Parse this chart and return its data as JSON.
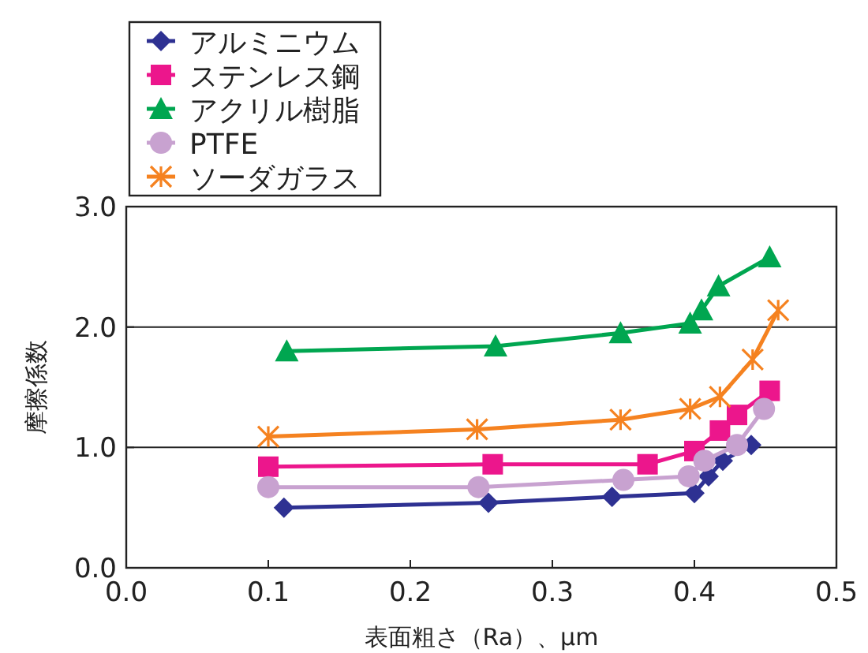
{
  "chart_data": {
    "type": "line",
    "xlabel": "表面粗さ（Ra）、μm",
    "ylabel": "摩擦係数",
    "xlim": [
      0,
      0.5
    ],
    "ylim": [
      0,
      3
    ],
    "xticks": [
      {
        "value": 0,
        "label": "0.0"
      },
      {
        "value": 0.1,
        "label": "0.1"
      },
      {
        "value": 0.2,
        "label": "0.2"
      },
      {
        "value": 0.3,
        "label": "0.3"
      },
      {
        "value": 0.4,
        "label": "0.4"
      },
      {
        "value": 0.5,
        "label": "0.5"
      }
    ],
    "yticks": [
      {
        "value": 0,
        "label": "0.0"
      },
      {
        "value": 1,
        "label": "1.0"
      },
      {
        "value": 2,
        "label": "2.0"
      },
      {
        "value": 3,
        "label": "3.0"
      }
    ],
    "grid": "y",
    "legend": "top left",
    "series": [
      {
        "name": "アルミニウム",
        "color": "#2e3192",
        "marker": "diamond",
        "x": [
          0.111,
          0.255,
          0.342,
          0.4,
          0.41,
          0.42,
          0.44
        ],
        "values": [
          0.5,
          0.54,
          0.59,
          0.62,
          0.76,
          0.89,
          1.02
        ]
      },
      {
        "name": "ステンレス鋼",
        "color": "#ec168c",
        "marker": "square",
        "x": [
          0.1,
          0.258,
          0.367,
          0.4,
          0.418,
          0.43,
          0.453
        ],
        "values": [
          0.84,
          0.86,
          0.86,
          0.97,
          1.14,
          1.27,
          1.47
        ]
      },
      {
        "name": "アクリル樹脂",
        "color": "#00a650",
        "marker": "triangle",
        "x": [
          0.113,
          0.26,
          0.348,
          0.397,
          0.405,
          0.417,
          0.453
        ],
        "values": [
          1.8,
          1.84,
          1.95,
          2.03,
          2.14,
          2.34,
          2.58
        ]
      },
      {
        "name": "PTFE",
        "color": "#c8a2d0",
        "marker": "circle",
        "x": [
          0.1,
          0.248,
          0.35,
          0.396,
          0.407,
          0.43,
          0.449
        ],
        "values": [
          0.67,
          0.67,
          0.73,
          0.76,
          0.89,
          1.02,
          1.32
        ]
      },
      {
        "name": "ソーダガラス",
        "color": "#f58220",
        "marker": "cross",
        "x": [
          0.1,
          0.247,
          0.348,
          0.397,
          0.418,
          0.441,
          0.459
        ],
        "values": [
          1.09,
          1.15,
          1.23,
          1.32,
          1.42,
          1.73,
          2.14
        ]
      }
    ]
  }
}
